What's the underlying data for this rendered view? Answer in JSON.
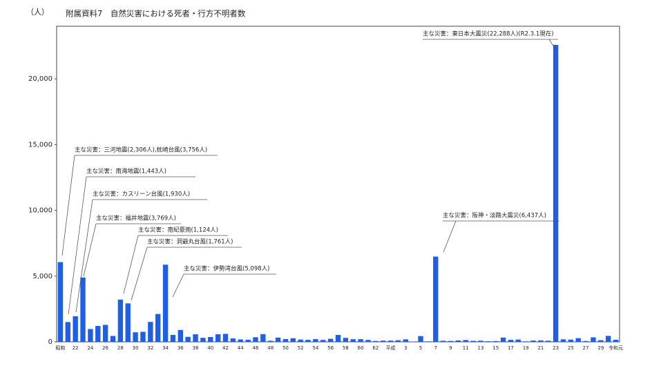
{
  "chart_data": {
    "type": "bar",
    "title": "附属資料7　自然災害における死者・行方不明者数",
    "y_unit": "（人）",
    "color": "#1f5fe6",
    "categories": [
      "昭和",
      null,
      "22",
      null,
      "24",
      null,
      "26",
      null,
      "28",
      null,
      "30",
      null,
      "32",
      null,
      "34",
      null,
      "36",
      null,
      "38",
      null,
      "40",
      null,
      "42",
      null,
      "44",
      null,
      "46",
      null,
      "48",
      null,
      "50",
      null,
      "52",
      null,
      "54",
      null,
      "56",
      null,
      "58",
      null,
      "60",
      null,
      "62",
      null,
      "平成",
      null,
      "3",
      null,
      "5",
      null,
      "7",
      null,
      "9",
      null,
      "11",
      null,
      "13",
      null,
      "15",
      null,
      "17",
      null,
      "19",
      null,
      "21",
      null,
      "23",
      null,
      "25",
      null,
      "27",
      null,
      "29",
      null,
      "令和元"
    ],
    "values": [
      6062,
      1504,
      1950,
      4897,
      975,
      1210,
      1291,
      449,
      3212,
      2926,
      727,
      765,
      1515,
      2120,
      5868,
      528,
      902,
      381,
      575,
      307,
      367,
      578,
      607,
      259,
      183,
      163,
      350,
      587,
      85,
      324,
      213,
      273,
      174,
      153,
      208,
      148,
      232,
      524,
      301,
      199,
      199,
      148,
      69,
      93,
      96,
      123,
      190,
      19,
      438,
      39,
      6482,
      84,
      71,
      109,
      141,
      78,
      90,
      48,
      62,
      327,
      153,
      177,
      39,
      101,
      115,
      89,
      22585,
      192,
      173,
      280,
      65,
      344,
      129,
      452,
      159
    ],
    "ylim": [
      0,
      24000
    ],
    "yticks": [
      0,
      {
        "value": 5000,
        "label": "5,000"
      },
      {
        "value": 10000,
        "label": "10,000"
      },
      {
        "value": 15000,
        "label": "15,000"
      },
      {
        "value": 20000,
        "label": "20,000"
      }
    ],
    "annotations": [
      {
        "text": "主な災害：三河地震(2,306人),枕崎台風(3,756人)"
      },
      {
        "text": "主な災害：南海地震(1,443人)"
      },
      {
        "text": "主な災害：カスリーン台風(1,930人)"
      },
      {
        "text": "主な災害：福井地震(3,769人)"
      },
      {
        "text": "主な災害：南紀豪雨(1,124人)"
      },
      {
        "text": "主な災害：洞爺丸台風(1,761人)"
      },
      {
        "text": "主な災害：伊勢湾台風(5,098人)"
      },
      {
        "text": "主な災害：阪神・淡路大震災(6,437人)"
      },
      {
        "text": "主な災害：東日本大震災(22,288人)(R2.3.1現在)"
      }
    ]
  }
}
